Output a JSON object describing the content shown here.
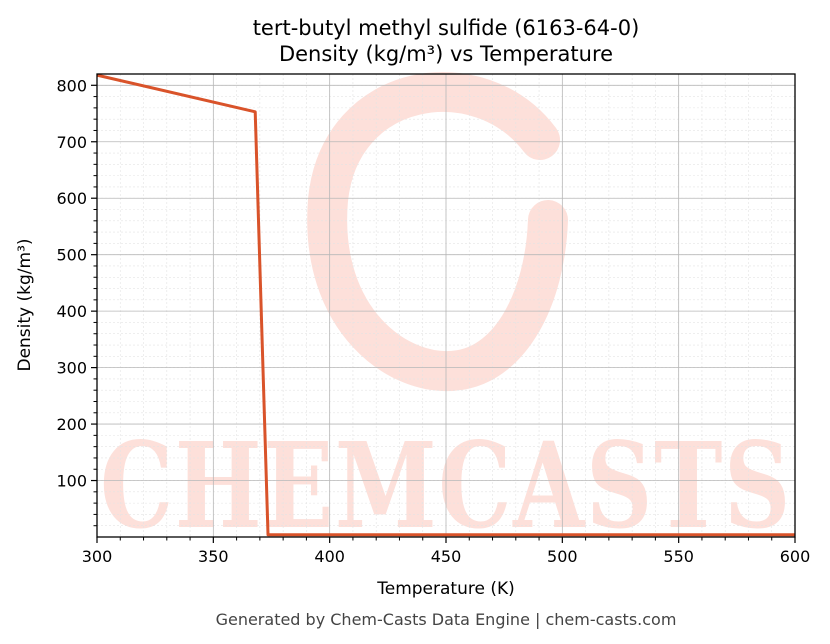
{
  "chart_data": {
    "type": "line",
    "title": "tert-butyl methyl sulfide (6163-64-0)",
    "subtitle": "Density (kg/m³) vs Temperature",
    "xlabel": "Temperature (K)",
    "ylabel": "Density (kg/m³)",
    "xlim": [
      300,
      600
    ],
    "ylim": [
      0,
      820
    ],
    "xticks": [
      300,
      350,
      400,
      450,
      500,
      550,
      600
    ],
    "yticks": [
      100,
      200,
      300,
      400,
      500,
      600,
      700,
      800
    ],
    "grid": true,
    "series": [
      {
        "color": "#d9532a",
        "x": [
          300,
          368,
          373.5,
          600
        ],
        "y": [
          818,
          753,
          4,
          4
        ]
      }
    ]
  },
  "watermark": {
    "text": "CHEMCASTS",
    "color": "#fde0da"
  },
  "footer": "Generated by Chem-Casts Data Engine | chem-casts.com"
}
